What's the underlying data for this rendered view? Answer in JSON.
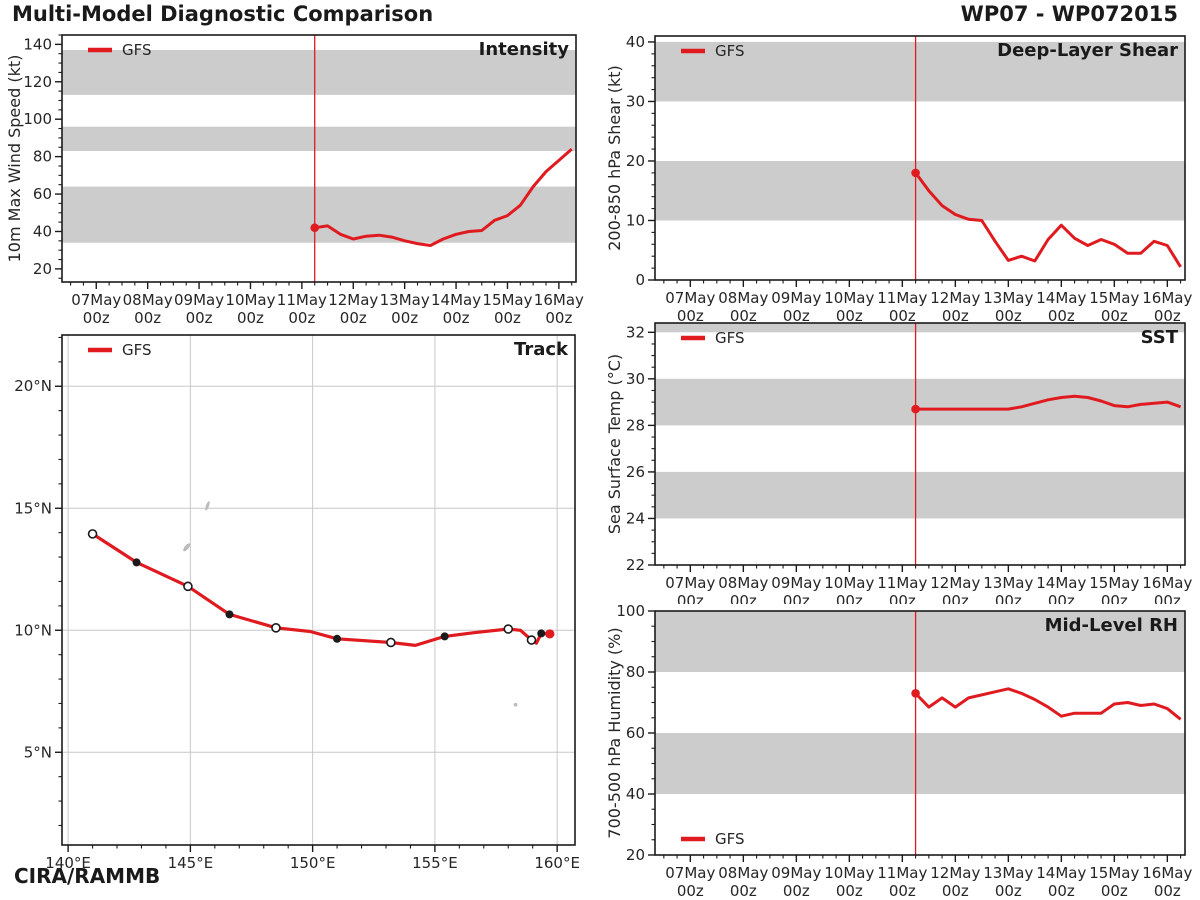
{
  "header": {
    "title": "Multi-Model Diagnostic Comparison",
    "storm_id": "WP07 - WP072015"
  },
  "footer": {
    "credit": "CIRA/RAMMB"
  },
  "colors": {
    "line_red": "#e01b20",
    "band_gray": "#cccccc",
    "grid_gray": "#c8c8c8",
    "land_gray": "#bbbbbb",
    "axis_dark": "#1a1a1a",
    "text_dark": "#262626",
    "marker_open_fill": "#ffffff"
  },
  "time_axis": {
    "x_unit": "hours since 07May 00z",
    "start_hour": -16,
    "end_hour": 224,
    "major_tick_hours": [
      0,
      24,
      48,
      72,
      96,
      120,
      144,
      168,
      192,
      216
    ],
    "major_tick_labels": [
      "07May",
      "08May",
      "09May",
      "10May",
      "11May",
      "12May",
      "13May",
      "14May",
      "15May",
      "16May"
    ],
    "tick_sublabel": "00z",
    "minor_step_hours": 6,
    "init_hour": 102
  },
  "chart_data": [
    {
      "id": "intensity",
      "type": "line",
      "title": "Intensity",
      "ylabel": "10m Max Wind Speed (kt)",
      "ylim": [
        13,
        145
      ],
      "yticks": [
        20,
        40,
        60,
        80,
        100,
        120,
        140
      ],
      "yminor_step": 5,
      "gray_bands": [
        [
          34,
          64
        ],
        [
          83,
          96
        ],
        [
          113,
          137
        ]
      ],
      "legend": {
        "label": "GFS",
        "position": "top-left"
      },
      "init_marker": true,
      "series": [
        {
          "name": "GFS",
          "x_hours": [
            102,
            108,
            114,
            120,
            126,
            132,
            138,
            144,
            150,
            156,
            162,
            168,
            174,
            180,
            186,
            192,
            198,
            204,
            210,
            216,
            222
          ],
          "values": [
            42,
            43,
            38.5,
            36,
            37.5,
            38,
            37,
            35,
            33.5,
            32.5,
            36,
            38.5,
            40,
            40.5,
            46,
            48.5,
            54,
            64,
            72,
            78,
            84
          ]
        }
      ]
    },
    {
      "id": "shear",
      "type": "line",
      "title": "Deep-Layer Shear",
      "ylabel": "200-850 hPa Shear (kt)",
      "ylim": [
        0,
        41
      ],
      "yticks": [
        0,
        10,
        20,
        30,
        40
      ],
      "yminor_step": 2,
      "gray_bands": [
        [
          10,
          20
        ],
        [
          30,
          40
        ]
      ],
      "legend": {
        "label": "GFS",
        "position": "top-left"
      },
      "init_marker": true,
      "series": [
        {
          "name": "GFS",
          "x_hours": [
            102,
            108,
            114,
            120,
            126,
            132,
            138,
            144,
            150,
            156,
            162,
            168,
            174,
            180,
            186,
            192,
            198,
            204,
            210,
            216,
            222
          ],
          "values": [
            18,
            15,
            12.5,
            11,
            10.2,
            10,
            6.5,
            3.3,
            4,
            3.2,
            6.8,
            9.2,
            7,
            5.8,
            6.8,
            6,
            4.5,
            4.5,
            6.5,
            5.8,
            2.2
          ]
        }
      ]
    },
    {
      "id": "sst",
      "type": "line",
      "title": "SST",
      "ylabel": "Sea Surface Temp (°C)",
      "ylim": [
        22,
        32.4
      ],
      "yticks": [
        22,
        24,
        26,
        28,
        30,
        32
      ],
      "yminor_step": 0.5,
      "gray_bands": [
        [
          24,
          26
        ],
        [
          28,
          30
        ],
        [
          32,
          32.4
        ]
      ],
      "legend": {
        "label": "GFS",
        "position": "top-left"
      },
      "init_marker": true,
      "series": [
        {
          "name": "GFS",
          "x_hours": [
            102,
            108,
            114,
            120,
            126,
            132,
            138,
            144,
            150,
            156,
            162,
            168,
            174,
            180,
            186,
            192,
            198,
            204,
            210,
            216,
            222
          ],
          "values": [
            28.7,
            28.7,
            28.7,
            28.7,
            28.7,
            28.7,
            28.7,
            28.7,
            28.8,
            28.95,
            29.1,
            29.2,
            29.25,
            29.2,
            29.05,
            28.85,
            28.8,
            28.9,
            28.95,
            29.0,
            28.8
          ]
        }
      ]
    },
    {
      "id": "rh",
      "type": "line",
      "title": "Mid-Level RH",
      "ylabel": "700-500 hPa Humidity (%)",
      "ylim": [
        20,
        100
      ],
      "yticks": [
        20,
        40,
        60,
        80,
        100
      ],
      "yminor_step": 5,
      "gray_bands": [
        [
          40,
          60
        ],
        [
          80,
          100
        ]
      ],
      "legend": {
        "label": "GFS",
        "position": "bottom-left"
      },
      "init_marker": true,
      "series": [
        {
          "name": "GFS",
          "x_hours": [
            102,
            108,
            114,
            120,
            126,
            132,
            138,
            144,
            150,
            156,
            162,
            168,
            174,
            180,
            186,
            192,
            198,
            204,
            210,
            216,
            222
          ],
          "values": [
            73,
            68.5,
            71.5,
            68.5,
            71.5,
            72.5,
            73.5,
            74.5,
            73,
            71,
            68.5,
            65.5,
            66.5,
            66.5,
            66.5,
            69.5,
            70,
            69,
            69.5,
            68,
            64.5
          ]
        }
      ]
    },
    {
      "id": "track",
      "type": "track",
      "title": "Track",
      "xlim": [
        139.75,
        160.73
      ],
      "ylim": [
        1.2,
        22.1
      ],
      "lon_ticks": [
        140,
        145,
        150,
        155,
        160
      ],
      "lon_tick_labels": [
        "140°E",
        "145°E",
        "150°E",
        "155°E",
        "160°E"
      ],
      "lat_ticks": [
        5,
        10,
        15,
        20
      ],
      "lat_tick_labels": [
        "5°N",
        "10°N",
        "15°N",
        "20°N"
      ],
      "legend": {
        "label": "GFS",
        "position": "top-left"
      },
      "track": {
        "name": "GFS",
        "points": [
          {
            "lon": 159.7,
            "lat": 9.85,
            "marker": "init"
          },
          {
            "lon": 159.35,
            "lat": 9.87,
            "marker": "filled"
          },
          {
            "lon": 159.15,
            "lat": 9.47,
            "marker": null
          },
          {
            "lon": 158.95,
            "lat": 9.6,
            "marker": "open"
          },
          {
            "lon": 158.5,
            "lat": 10.0,
            "marker": null
          },
          {
            "lon": 158.0,
            "lat": 10.05,
            "marker": "open"
          },
          {
            "lon": 156.6,
            "lat": 9.9,
            "marker": null
          },
          {
            "lon": 155.4,
            "lat": 9.75,
            "marker": "filled"
          },
          {
            "lon": 154.2,
            "lat": 9.38,
            "marker": null
          },
          {
            "lon": 153.2,
            "lat": 9.5,
            "marker": "open"
          },
          {
            "lon": 151.0,
            "lat": 9.65,
            "marker": "filled"
          },
          {
            "lon": 149.9,
            "lat": 9.95,
            "marker": null
          },
          {
            "lon": 148.5,
            "lat": 10.1,
            "marker": "open"
          },
          {
            "lon": 146.6,
            "lat": 10.65,
            "marker": "filled"
          },
          {
            "lon": 144.9,
            "lat": 11.8,
            "marker": "open"
          },
          {
            "lon": 142.8,
            "lat": 12.78,
            "marker": "filled"
          },
          {
            "lon": 141.0,
            "lat": 13.95,
            "marker": "open"
          }
        ]
      },
      "islands": [
        {
          "name": "saipan-tinian",
          "lon": 145.7,
          "lat": 15.1,
          "rx": 1.5,
          "ry": 5,
          "rot": 20
        },
        {
          "name": "guam",
          "lon": 144.85,
          "lat": 13.4,
          "rx": 2,
          "ry": 5,
          "rot": 40
        },
        {
          "name": "pohnpei",
          "lon": 158.3,
          "lat": 6.95,
          "rx": 1.8,
          "ry": 1.8,
          "rot": 0
        }
      ]
    }
  ]
}
